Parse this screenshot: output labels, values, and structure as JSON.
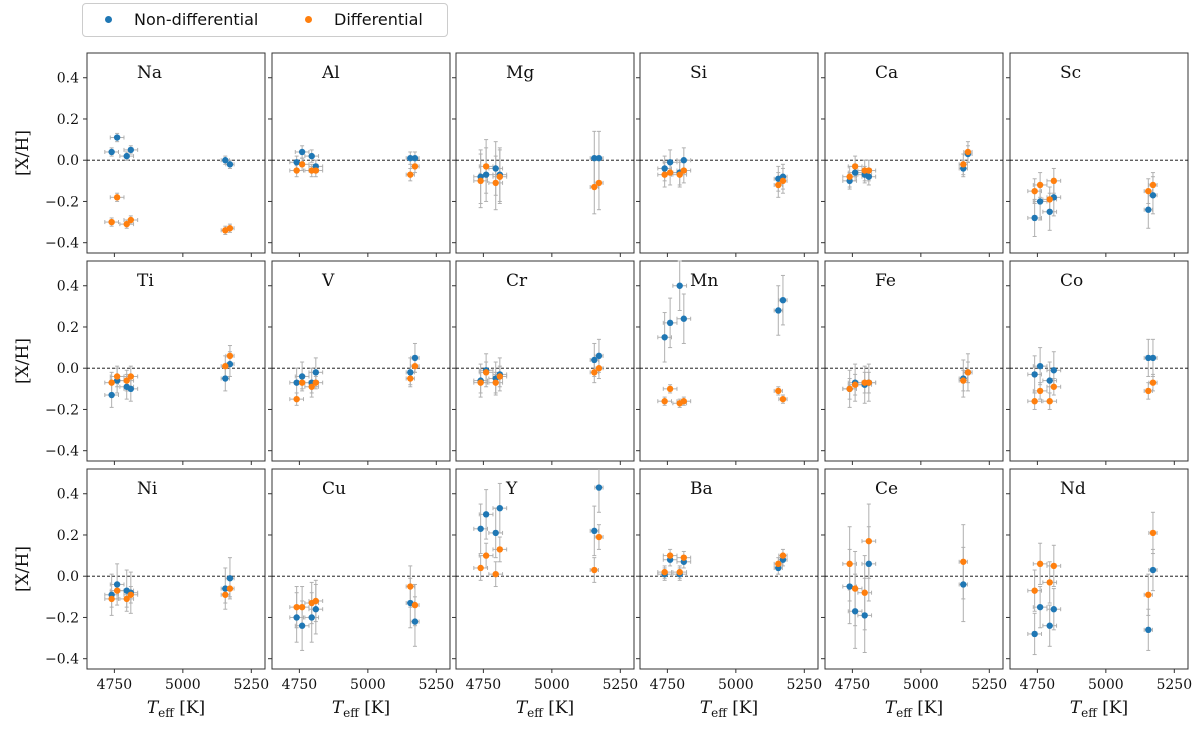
{
  "legend": {
    "entries": [
      {
        "label": "Non-differential",
        "color": "#1f77b4"
      },
      {
        "label": "Differential",
        "color": "#ff7f0e"
      }
    ]
  },
  "axes": {
    "ylabel": "[X/H]",
    "xlabel_main": "T",
    "xlabel_sub": "eff",
    "xlabel_unit": "[K]",
    "xlim": [
      4650,
      5300
    ],
    "ylim": [
      -0.45,
      0.52
    ],
    "xticks": [
      4750,
      5000,
      5250
    ],
    "yticks": [
      0.4,
      0.2,
      0.0,
      -0.2,
      -0.4
    ],
    "ytick_labels": [
      "0.4",
      "0.2",
      "0.0",
      "−0.2",
      "−0.4"
    ],
    "reference_line_y": 0.0
  },
  "colors": {
    "nondiff": "#1f77b4",
    "diff": "#ff7f0e",
    "errorbar": "#b0b0b0",
    "refline": "#000000"
  },
  "chart_data": {
    "type": "scatter",
    "teff": [
      4740,
      4760,
      4795,
      4810,
      5155,
      5172
    ],
    "teff_err": [
      25,
      25,
      25,
      25,
      15,
      15
    ],
    "panels": [
      {
        "title": "Na",
        "nondiff": [
          0.04,
          0.11,
          0.02,
          0.05,
          0.0,
          -0.02
        ],
        "diff": [
          -0.3,
          -0.18,
          -0.31,
          -0.29,
          -0.34,
          -0.33
        ],
        "nondiff_err": 0.02,
        "diff_err": 0.02
      },
      {
        "title": "Al",
        "nondiff": [
          -0.01,
          0.04,
          0.02,
          -0.03,
          0.01,
          0.01
        ],
        "diff": [
          -0.05,
          -0.02,
          -0.05,
          -0.05,
          -0.07,
          -0.03
        ],
        "nondiff_err": 0.03,
        "diff_err": 0.03
      },
      {
        "title": "Mg",
        "nondiff": [
          -0.08,
          -0.07,
          -0.04,
          -0.07,
          0.01,
          0.01
        ],
        "diff": [
          -0.1,
          -0.03,
          -0.11,
          -0.08,
          -0.13,
          -0.11
        ],
        "nondiff_err": 0.13,
        "diff_err": 0.13
      },
      {
        "title": "Si",
        "nondiff": [
          -0.04,
          -0.01,
          -0.06,
          0.0,
          -0.09,
          -0.08
        ],
        "diff": [
          -0.07,
          -0.06,
          -0.07,
          -0.05,
          -0.12,
          -0.1
        ],
        "nondiff_err": 0.06,
        "diff_err": 0.06
      },
      {
        "title": "Ca",
        "nondiff": [
          -0.1,
          -0.06,
          -0.07,
          -0.08,
          -0.04,
          0.03
        ],
        "diff": [
          -0.08,
          -0.03,
          -0.05,
          -0.05,
          -0.02,
          0.04
        ],
        "nondiff_err": 0.04,
        "diff_err": 0.05
      },
      {
        "title": "Sc",
        "nondiff": [
          -0.28,
          -0.2,
          -0.25,
          -0.18,
          -0.24,
          -0.17
        ],
        "diff": [
          -0.15,
          -0.12,
          -0.19,
          -0.1,
          -0.15,
          -0.12
        ],
        "nondiff_err": 0.09,
        "diff_err": 0.06
      },
      {
        "title": "Ti",
        "nondiff": [
          -0.13,
          -0.06,
          -0.09,
          -0.1,
          -0.05,
          0.02
        ],
        "diff": [
          -0.07,
          -0.04,
          -0.06,
          -0.04,
          0.01,
          0.06
        ],
        "nondiff_err": 0.06,
        "diff_err": 0.05
      },
      {
        "title": "V",
        "nondiff": [
          -0.07,
          -0.04,
          -0.07,
          -0.02,
          -0.02,
          0.05
        ],
        "diff": [
          -0.15,
          -0.07,
          -0.09,
          -0.07,
          -0.05,
          0.01
        ],
        "nondiff_err": 0.07,
        "diff_err": 0.03
      },
      {
        "title": "Cr",
        "nondiff": [
          -0.06,
          -0.01,
          -0.05,
          -0.03,
          0.04,
          0.06
        ],
        "diff": [
          -0.07,
          -0.02,
          -0.07,
          -0.04,
          -0.02,
          0.0
        ],
        "nondiff_err": 0.08,
        "diff_err": 0.05
      },
      {
        "title": "Mn",
        "nondiff": [
          0.15,
          0.22,
          0.4,
          0.24,
          0.28,
          0.33
        ],
        "diff": [
          -0.16,
          -0.1,
          -0.17,
          -0.16,
          -0.11,
          -0.15
        ],
        "nondiff_err": 0.12,
        "diff_err": 0.02
      },
      {
        "title": "Fe",
        "nondiff": [
          -0.1,
          -0.07,
          -0.08,
          -0.07,
          -0.05,
          -0.02
        ],
        "diff": [
          -0.1,
          -0.08,
          -0.07,
          -0.07,
          -0.06,
          -0.02
        ],
        "nondiff_err": 0.09,
        "diff_err": 0.05
      },
      {
        "title": "Co",
        "nondiff": [
          -0.03,
          0.01,
          -0.06,
          -0.01,
          0.05,
          0.05
        ],
        "diff": [
          -0.16,
          -0.11,
          -0.16,
          -0.09,
          -0.11,
          -0.07
        ],
        "nondiff_err": 0.09,
        "diff_err": 0.04
      },
      {
        "title": "Ni",
        "nondiff": [
          -0.09,
          -0.04,
          -0.07,
          -0.08,
          -0.06,
          -0.01
        ],
        "diff": [
          -0.11,
          -0.07,
          -0.11,
          -0.09,
          -0.09,
          -0.06
        ],
        "nondiff_err": 0.1,
        "diff_err": 0.04
      },
      {
        "title": "Cu",
        "nondiff": [
          -0.2,
          -0.24,
          -0.2,
          -0.16,
          -0.13,
          -0.22
        ],
        "diff": [
          -0.15,
          -0.15,
          -0.13,
          -0.12,
          -0.05,
          -0.14
        ],
        "nondiff_err": 0.12,
        "diff_err": 0.1
      },
      {
        "title": "Y",
        "nondiff": [
          0.23,
          0.3,
          0.21,
          0.33,
          0.22,
          0.43
        ],
        "diff": [
          0.04,
          0.1,
          0.01,
          0.13,
          0.03,
          0.19
        ],
        "nondiff_err": 0.12,
        "diff_err": 0.06
      },
      {
        "title": "Ba",
        "nondiff": [
          0.01,
          0.08,
          0.01,
          0.07,
          0.04,
          0.08
        ],
        "diff": [
          0.02,
          0.1,
          0.02,
          0.09,
          0.06,
          0.1
        ],
        "nondiff_err": 0.03,
        "diff_err": 0.03
      },
      {
        "title": "Ce",
        "nondiff": [
          -0.05,
          -0.17,
          -0.19,
          0.06,
          -0.04,
          null
        ],
        "diff": [
          0.06,
          -0.06,
          -0.08,
          0.17,
          0.07,
          null
        ],
        "nondiff_err": 0.18,
        "diff_err": 0.18
      },
      {
        "title": "Nd",
        "nondiff": [
          -0.28,
          -0.15,
          -0.24,
          -0.16,
          -0.26,
          0.03
        ],
        "diff": [
          -0.07,
          0.06,
          -0.03,
          0.05,
          -0.09,
          0.21
        ],
        "nondiff_err": 0.1,
        "diff_err": 0.1
      }
    ]
  }
}
